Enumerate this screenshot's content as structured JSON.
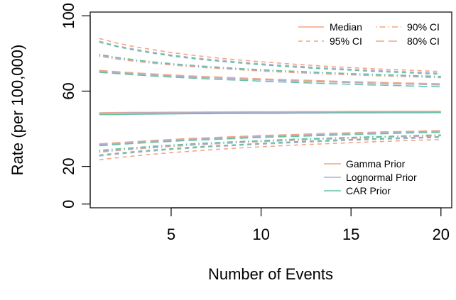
{
  "chart_data": {
    "type": "line",
    "title": "",
    "xlabel": "Number of Events",
    "ylabel": "Rate (per 100,000)",
    "xlim": [
      0.5,
      20.6
    ],
    "ylim": [
      -2,
      102
    ],
    "xticks": [
      5,
      10,
      15,
      20
    ],
    "yticks": [
      0,
      20,
      60,
      100
    ],
    "grid": false,
    "x": [
      1,
      2,
      3,
      4,
      5,
      6,
      7,
      8,
      9,
      10,
      11,
      12,
      13,
      14,
      15,
      16,
      17,
      18,
      19,
      20
    ],
    "priors": [
      {
        "name": "Gamma Prior",
        "color": "#f4a582"
      },
      {
        "name": "Lognormal Prior",
        "color": "#b2abd2"
      },
      {
        "name": "CAR Prior",
        "color": "#66c2a5"
      }
    ],
    "statistics": [
      {
        "name": "Median",
        "dash": "solid"
      },
      {
        "name": "95% CI",
        "dash": "dashed"
      },
      {
        "name": "90% CI",
        "dash": "dotdash"
      },
      {
        "name": "80% CI",
        "dash": "longdash"
      }
    ],
    "series": [
      {
        "prior": "Gamma Prior",
        "stat": "Median",
        "values": [
          48.5,
          48.6,
          48.7,
          48.7,
          48.8,
          48.8,
          48.9,
          48.9,
          49.0,
          49.0,
          49.0,
          49.1,
          49.1,
          49.1,
          49.2,
          49.2,
          49.2,
          49.3,
          49.3,
          49.3
        ]
      },
      {
        "prior": "Lognormal Prior",
        "stat": "Median",
        "values": [
          48.2,
          48.3,
          48.4,
          48.4,
          48.5,
          48.5,
          48.6,
          48.6,
          48.6,
          48.7,
          48.7,
          48.7,
          48.8,
          48.8,
          48.8,
          48.8,
          48.9,
          48.9,
          48.9,
          48.9
        ]
      },
      {
        "prior": "CAR Prior",
        "stat": "Median",
        "values": [
          47.5,
          47.6,
          47.7,
          47.8,
          47.9,
          48.0,
          48.0,
          48.1,
          48.1,
          48.2,
          48.2,
          48.3,
          48.3,
          48.4,
          48.4,
          48.4,
          48.5,
          48.5,
          48.5,
          48.6
        ]
      },
      {
        "prior": "Gamma Prior",
        "stat": "95% CI",
        "values": [
          88,
          85.5,
          83.5,
          82,
          80.5,
          79.3,
          78.2,
          77.2,
          76.4,
          75.6,
          74.9,
          74.2,
          73.6,
          73,
          72.5,
          72,
          71.6,
          71.2,
          70.8,
          70.4
        ]
      },
      {
        "prior": "Lognormal Prior",
        "stat": "95% CI",
        "values": [
          86.5,
          84,
          82.2,
          80.6,
          79.2,
          78,
          77,
          76.1,
          75.3,
          74.5,
          73.8,
          73.2,
          72.6,
          72.1,
          71.6,
          71.1,
          70.7,
          70.3,
          69.9,
          69.5
        ]
      },
      {
        "prior": "CAR Prior",
        "stat": "95% CI",
        "values": [
          86,
          83.6,
          81.7,
          80.1,
          78.7,
          77.5,
          76.5,
          75.6,
          74.8,
          74,
          73.3,
          72.7,
          72.1,
          71.6,
          71.1,
          70.6,
          70.2,
          69.8,
          69.4,
          69
        ]
      },
      {
        "prior": "Gamma Prior",
        "stat": "95% CI",
        "values": [
          23.5,
          24.6,
          25.6,
          26.5,
          27.3,
          28,
          28.7,
          29.3,
          29.9,
          30.4,
          30.9,
          31.4,
          31.8,
          32.2,
          32.6,
          33,
          33.3,
          33.7,
          34,
          34.3
        ]
      },
      {
        "prior": "Lognormal Prior",
        "stat": "95% CI",
        "values": [
          25.5,
          26.5,
          27.4,
          28.2,
          29,
          29.6,
          30.3,
          30.8,
          31.3,
          31.8,
          32.3,
          32.7,
          33.1,
          33.5,
          33.9,
          34.2,
          34.5,
          34.8,
          35.1,
          35.4
        ]
      },
      {
        "prior": "CAR Prior",
        "stat": "95% CI",
        "values": [
          26,
          27,
          27.9,
          28.7,
          29.4,
          30.1,
          30.7,
          31.2,
          31.7,
          32.2,
          32.7,
          33.1,
          33.5,
          33.9,
          34.3,
          34.6,
          34.9,
          35.2,
          35.5,
          35.8
        ]
      },
      {
        "prior": "Gamma Prior",
        "stat": "90% CI",
        "values": [
          78.5,
          77,
          75.8,
          74.8,
          73.9,
          73.1,
          72.4,
          71.8,
          71.2,
          70.7,
          70.2,
          69.8,
          69.4,
          69,
          68.6,
          68.3,
          68,
          67.7,
          67.4,
          67.1
        ]
      },
      {
        "prior": "Lognormal Prior",
        "stat": "90% CI",
        "values": [
          79,
          77.5,
          76.3,
          75.2,
          74.3,
          73.5,
          72.8,
          72.2,
          71.6,
          71.1,
          70.6,
          70.2,
          69.8,
          69.4,
          69,
          68.7,
          68.4,
          68.1,
          67.8,
          67.5
        ]
      },
      {
        "prior": "CAR Prior",
        "stat": "90% CI",
        "values": [
          79.5,
          77.9,
          76.6,
          75.5,
          74.6,
          73.8,
          73.1,
          72.5,
          71.9,
          71.4,
          70.9,
          70.5,
          70.1,
          69.7,
          69.3,
          69,
          68.7,
          68.4,
          68.1,
          67.8
        ]
      },
      {
        "prior": "Gamma Prior",
        "stat": "90% CI",
        "values": [
          27.5,
          28.4,
          29.2,
          29.9,
          30.6,
          31.2,
          31.7,
          32.2,
          32.7,
          33.1,
          33.5,
          33.9,
          34.3,
          34.6,
          34.9,
          35.2,
          35.5,
          35.8,
          36,
          36.3
        ]
      },
      {
        "prior": "Lognormal Prior",
        "stat": "90% CI",
        "values": [
          28,
          28.8,
          29.6,
          30.3,
          30.9,
          31.5,
          32,
          32.5,
          32.9,
          33.4,
          33.8,
          34.1,
          34.5,
          34.8,
          35.1,
          35.4,
          35.7,
          35.9,
          36.2,
          36.4
        ]
      },
      {
        "prior": "CAR Prior",
        "stat": "90% CI",
        "values": [
          28.5,
          29.3,
          30,
          30.7,
          31.3,
          31.9,
          32.4,
          32.9,
          33.3,
          33.7,
          34.1,
          34.5,
          34.8,
          35.1,
          35.4,
          35.7,
          36,
          36.2,
          36.5,
          36.7
        ]
      },
      {
        "prior": "Gamma Prior",
        "stat": "80% CI",
        "values": [
          71,
          70.3,
          69.7,
          69.1,
          68.6,
          68.1,
          67.7,
          67.3,
          66.9,
          66.5,
          66.2,
          65.9,
          65.6,
          65.3,
          65,
          64.8,
          64.5,
          64.3,
          64.1,
          63.9
        ]
      },
      {
        "prior": "Lognormal Prior",
        "stat": "80% CI",
        "values": [
          70.5,
          69.8,
          69.2,
          68.6,
          68.1,
          67.6,
          67.2,
          66.8,
          66.4,
          66,
          65.7,
          65.3,
          65,
          64.8,
          64.5,
          64.2,
          64,
          63.8,
          63.5,
          63.3
        ]
      },
      {
        "prior": "CAR Prior",
        "stat": "80% CI",
        "values": [
          70,
          69.3,
          68.6,
          68,
          67.5,
          67,
          66.5,
          66.1,
          65.7,
          65.3,
          64.9,
          64.6,
          64.2,
          63.9,
          63.6,
          63.3,
          63.1,
          62.8,
          62.5,
          62.3
        ]
      },
      {
        "prior": "Gamma Prior",
        "stat": "80% CI",
        "values": [
          32,
          32.6,
          33.2,
          33.8,
          34.3,
          34.8,
          35.2,
          35.6,
          36,
          36.4,
          36.7,
          37,
          37.3,
          37.6,
          37.9,
          38.1,
          38.4,
          38.6,
          38.8,
          39
        ]
      },
      {
        "prior": "Lognormal Prior",
        "stat": "80% CI",
        "values": [
          31.5,
          32.1,
          32.7,
          33.3,
          33.8,
          34.3,
          34.7,
          35.1,
          35.5,
          35.9,
          36.2,
          36.5,
          36.8,
          37.1,
          37.4,
          37.7,
          37.9,
          38.2,
          38.4,
          38.6
        ]
      },
      {
        "prior": "CAR Prior",
        "stat": "80% CI",
        "values": [
          31,
          31.6,
          32.2,
          32.8,
          33.3,
          33.8,
          34.2,
          34.6,
          35,
          35.4,
          35.7,
          36,
          36.3,
          36.6,
          36.9,
          37.2,
          37.4,
          37.7,
          37.9,
          38.1
        ]
      }
    ],
    "legends": [
      {
        "position": "top-right",
        "ncol": 2,
        "entries": [
          "Median",
          "95% CI",
          "90% CI",
          "80% CI"
        ]
      },
      {
        "position": "bottom-right",
        "ncol": 1,
        "entries": [
          "Gamma Prior",
          "Lognormal Prior",
          "CAR Prior"
        ]
      }
    ]
  }
}
